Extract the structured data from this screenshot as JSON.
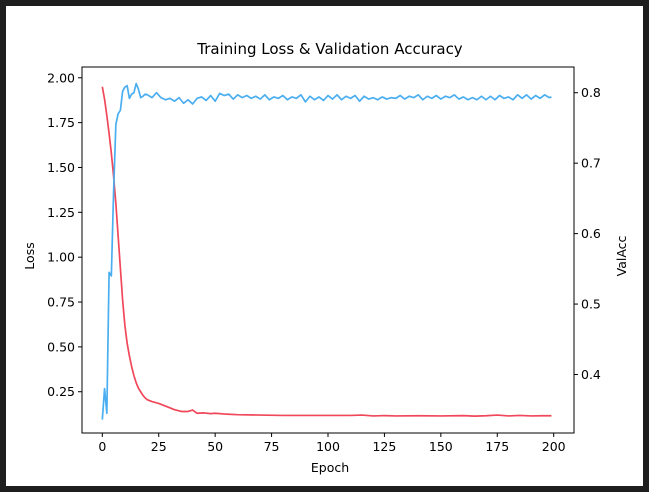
{
  "chart_data": {
    "type": "line",
    "title": "Training Loss & Validation Accuracy",
    "xlabel": "Epoch",
    "ylabel_left": "Loss",
    "ylabel_right": "ValAcc",
    "xlim": [
      -9,
      209
    ],
    "ylim_left": [
      0.02,
      2.06
    ],
    "ylim_right": [
      0.317,
      0.8365
    ],
    "xticks": [
      0,
      25,
      50,
      75,
      100,
      125,
      150,
      175,
      200
    ],
    "yticks_left": [
      "0.25",
      "0.50",
      "0.75",
      "1.00",
      "1.25",
      "1.50",
      "1.75",
      "2.00"
    ],
    "yticks_right": [
      "0.4",
      "0.5",
      "0.6",
      "0.7",
      "0.8"
    ],
    "grid": false,
    "series": [
      {
        "name": "Loss",
        "axis": "left",
        "color": "#f0485a",
        "points": [
          [
            0,
            1.95
          ],
          [
            1,
            1.88
          ],
          [
            2,
            1.79
          ],
          [
            3,
            1.69
          ],
          [
            4,
            1.58
          ],
          [
            5,
            1.45
          ],
          [
            6,
            1.3
          ],
          [
            7,
            1.12
          ],
          [
            8,
            0.94
          ],
          [
            9,
            0.76
          ],
          [
            10,
            0.62
          ],
          [
            11,
            0.52
          ],
          [
            12,
            0.45
          ],
          [
            13,
            0.39
          ],
          [
            14,
            0.34
          ],
          [
            15,
            0.3
          ],
          [
            16,
            0.27
          ],
          [
            17,
            0.25
          ],
          [
            18,
            0.23
          ],
          [
            19,
            0.215
          ],
          [
            20,
            0.205
          ],
          [
            22,
            0.195
          ],
          [
            25,
            0.185
          ],
          [
            28,
            0.17
          ],
          [
            32,
            0.15
          ],
          [
            35,
            0.14
          ],
          [
            38,
            0.14
          ],
          [
            40,
            0.148
          ],
          [
            42,
            0.13
          ],
          [
            45,
            0.132
          ],
          [
            48,
            0.128
          ],
          [
            50,
            0.13
          ],
          [
            55,
            0.125
          ],
          [
            60,
            0.122
          ],
          [
            70,
            0.12
          ],
          [
            80,
            0.118
          ],
          [
            90,
            0.118
          ],
          [
            100,
            0.118
          ],
          [
            110,
            0.118
          ],
          [
            115,
            0.12
          ],
          [
            120,
            0.115
          ],
          [
            125,
            0.117
          ],
          [
            130,
            0.115
          ],
          [
            140,
            0.116
          ],
          [
            150,
            0.115
          ],
          [
            160,
            0.117
          ],
          [
            165,
            0.114
          ],
          [
            170,
            0.116
          ],
          [
            175,
            0.12
          ],
          [
            180,
            0.115
          ],
          [
            185,
            0.118
          ],
          [
            190,
            0.115
          ],
          [
            195,
            0.116
          ],
          [
            199,
            0.116
          ]
        ]
      },
      {
        "name": "ValAcc",
        "axis": "right",
        "color": "#4aaef0",
        "points": [
          [
            0,
            0.336
          ],
          [
            1,
            0.38
          ],
          [
            2,
            0.345
          ],
          [
            3,
            0.545
          ],
          [
            4,
            0.54
          ],
          [
            5,
            0.66
          ],
          [
            6,
            0.755
          ],
          [
            7,
            0.77
          ],
          [
            8,
            0.775
          ],
          [
            9,
            0.802
          ],
          [
            10,
            0.808
          ],
          [
            11,
            0.81
          ],
          [
            12,
            0.792
          ],
          [
            13,
            0.798
          ],
          [
            14,
            0.8
          ],
          [
            15,
            0.813
          ],
          [
            16,
            0.805
          ],
          [
            17,
            0.793
          ],
          [
            18,
            0.795
          ],
          [
            19,
            0.798
          ],
          [
            20,
            0.797
          ],
          [
            22,
            0.793
          ],
          [
            24,
            0.8
          ],
          [
            26,
            0.793
          ],
          [
            28,
            0.79
          ],
          [
            30,
            0.792
          ],
          [
            32,
            0.788
          ],
          [
            34,
            0.793
          ],
          [
            36,
            0.785
          ],
          [
            38,
            0.79
          ],
          [
            40,
            0.784
          ],
          [
            42,
            0.792
          ],
          [
            44,
            0.794
          ],
          [
            46,
            0.789
          ],
          [
            48,
            0.796
          ],
          [
            50,
            0.788
          ],
          [
            52,
            0.799
          ],
          [
            54,
            0.796
          ],
          [
            56,
            0.798
          ],
          [
            58,
            0.791
          ],
          [
            60,
            0.797
          ],
          [
            62,
            0.793
          ],
          [
            64,
            0.796
          ],
          [
            66,
            0.792
          ],
          [
            68,
            0.795
          ],
          [
            70,
            0.791
          ],
          [
            72,
            0.797
          ],
          [
            74,
            0.79
          ],
          [
            76,
            0.794
          ],
          [
            78,
            0.792
          ],
          [
            80,
            0.796
          ],
          [
            82,
            0.79
          ],
          [
            84,
            0.794
          ],
          [
            86,
            0.792
          ],
          [
            88,
            0.797
          ],
          [
            90,
            0.787
          ],
          [
            92,
            0.795
          ],
          [
            94,
            0.79
          ],
          [
            96,
            0.794
          ],
          [
            98,
            0.789
          ],
          [
            100,
            0.796
          ],
          [
            102,
            0.791
          ],
          [
            104,
            0.797
          ],
          [
            106,
            0.79
          ],
          [
            108,
            0.795
          ],
          [
            110,
            0.792
          ],
          [
            112,
            0.796
          ],
          [
            114,
            0.788
          ],
          [
            116,
            0.795
          ],
          [
            118,
            0.791
          ],
          [
            120,
            0.793
          ],
          [
            122,
            0.79
          ],
          [
            124,
            0.794
          ],
          [
            126,
            0.791
          ],
          [
            128,
            0.793
          ],
          [
            130,
            0.792
          ],
          [
            132,
            0.796
          ],
          [
            134,
            0.791
          ],
          [
            136,
            0.795
          ],
          [
            138,
            0.793
          ],
          [
            140,
            0.797
          ],
          [
            142,
            0.79
          ],
          [
            144,
            0.795
          ],
          [
            146,
            0.792
          ],
          [
            148,
            0.796
          ],
          [
            150,
            0.791
          ],
          [
            152,
            0.795
          ],
          [
            154,
            0.793
          ],
          [
            156,
            0.797
          ],
          [
            158,
            0.791
          ],
          [
            160,
            0.794
          ],
          [
            162,
            0.79
          ],
          [
            164,
            0.793
          ],
          [
            166,
            0.79
          ],
          [
            168,
            0.795
          ],
          [
            170,
            0.79
          ],
          [
            172,
            0.795
          ],
          [
            174,
            0.79
          ],
          [
            176,
            0.796
          ],
          [
            178,
            0.792
          ],
          [
            180,
            0.794
          ],
          [
            182,
            0.79
          ],
          [
            184,
            0.797
          ],
          [
            186,
            0.792
          ],
          [
            188,
            0.797
          ],
          [
            190,
            0.791
          ],
          [
            192,
            0.796
          ],
          [
            194,
            0.792
          ],
          [
            196,
            0.797
          ],
          [
            198,
            0.793
          ],
          [
            199,
            0.794
          ]
        ]
      }
    ]
  }
}
